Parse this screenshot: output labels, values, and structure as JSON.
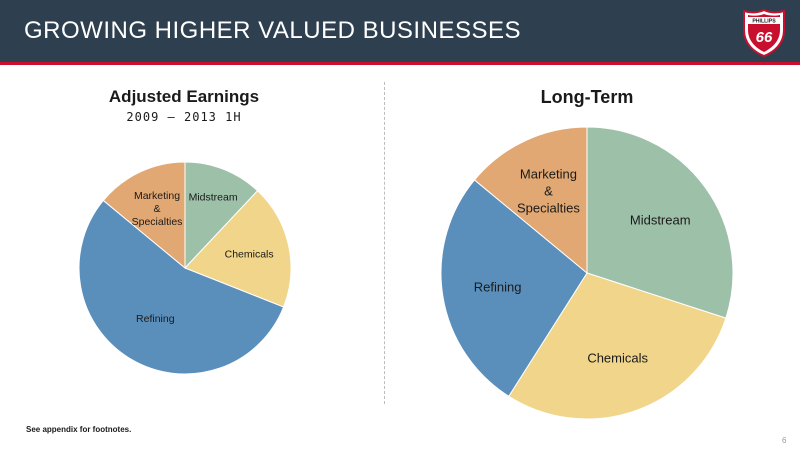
{
  "header": {
    "title": "GROWING HIGHER VALUED BUSINESSES",
    "logo_text_top": "PHILLIPS",
    "logo_text_main": "66"
  },
  "chart_data": [
    {
      "type": "pie",
      "title": "Adjusted Earnings",
      "subtitle": "2009 – 2013 1H",
      "slices": [
        {
          "label": "Midstream",
          "lines": [
            "Midstream"
          ],
          "value": 12,
          "color": "#9dc0a9"
        },
        {
          "label": "Chemicals",
          "lines": [
            "Chemicals"
          ],
          "value": 19,
          "color": "#f0d58a"
        },
        {
          "label": "Refining",
          "lines": [
            "Refining"
          ],
          "value": 55,
          "color": "#5b8fbb"
        },
        {
          "label": "Marketing & Specialties",
          "lines": [
            "Marketing",
            "&",
            "Specialties"
          ],
          "value": 14,
          "color": "#e2a873"
        }
      ]
    },
    {
      "type": "pie",
      "title": "Long-Term",
      "subtitle": "",
      "slices": [
        {
          "label": "Midstream",
          "lines": [
            "Midstream"
          ],
          "value": 30,
          "color": "#9dc0a9"
        },
        {
          "label": "Chemicals",
          "lines": [
            "Chemicals"
          ],
          "value": 29,
          "color": "#f0d58a"
        },
        {
          "label": "Refining",
          "lines": [
            "Refining"
          ],
          "value": 27,
          "color": "#5b8fbb"
        },
        {
          "label": "Marketing & Specialties",
          "lines": [
            "Marketing",
            "&",
            "Specialties"
          ],
          "value": 14,
          "color": "#e2a873"
        }
      ]
    }
  ],
  "footer": {
    "footnote": "See appendix for footnotes.",
    "page_number": "6"
  },
  "colors": {
    "header_bg": "#2e3f4f",
    "accent_red": "#c8102e"
  }
}
